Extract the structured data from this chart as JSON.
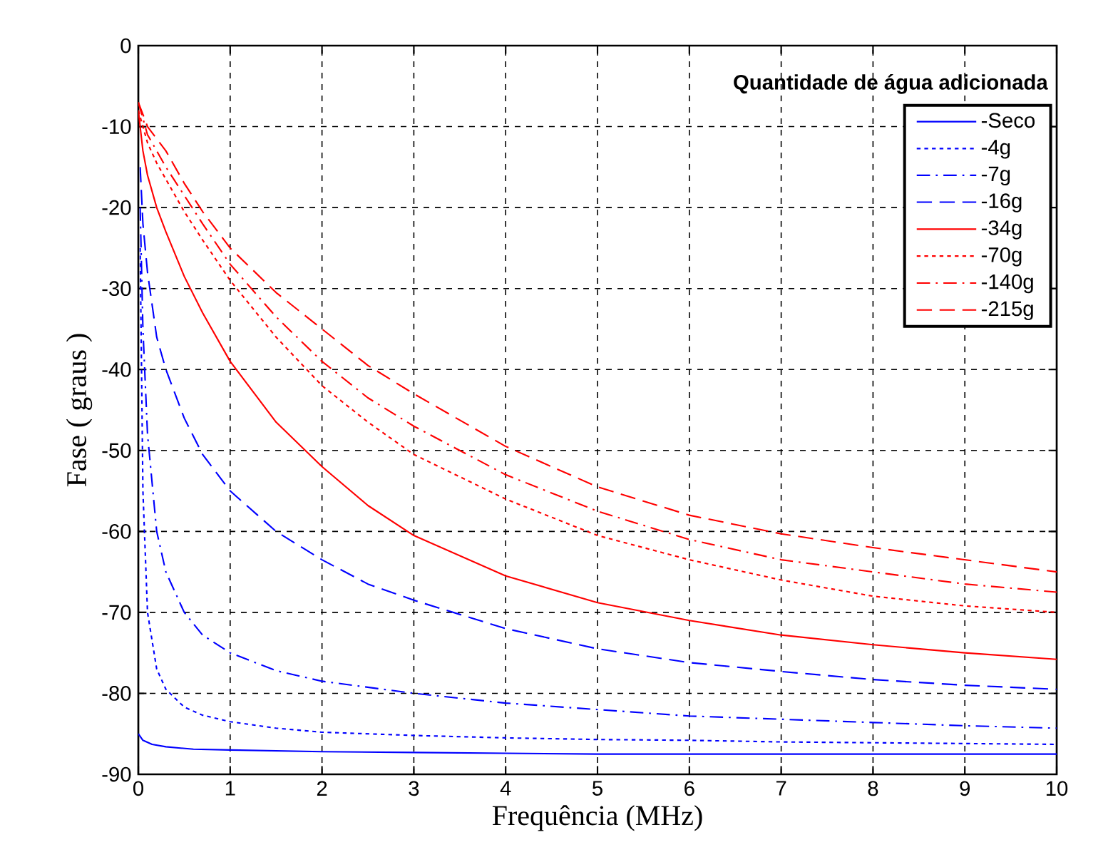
{
  "chart_data": {
    "type": "line",
    "xlabel": "Frequência (MHz)",
    "ylabel": "Fase ( graus )",
    "legend_title": "Quantidade de água adicionada",
    "xlim": [
      0,
      10
    ],
    "ylim": [
      -90,
      0
    ],
    "xticks": [
      0,
      1,
      2,
      3,
      4,
      5,
      6,
      7,
      8,
      9,
      10
    ],
    "yticks": [
      -90,
      -80,
      -70,
      -60,
      -50,
      -40,
      -30,
      -20,
      -10,
      0
    ],
    "grid": true,
    "legend": "top right",
    "series": [
      {
        "name": "-Seco",
        "color": "#0000ff",
        "line_style": "solid",
        "x": [
          0,
          0.05,
          0.15,
          0.3,
          0.6,
          1,
          2,
          3,
          4,
          5,
          6,
          7,
          8,
          9,
          10
        ],
        "values": [
          -85,
          -85.8,
          -86.3,
          -86.6,
          -86.9,
          -87,
          -87.2,
          -87.3,
          -87.4,
          -87.5,
          -87.5,
          -87.5,
          -87.5,
          -87.5,
          -87.5
        ]
      },
      {
        "name": "-4g",
        "color": "#0000ff",
        "line_style": "dotted",
        "x": [
          0.02,
          0.05,
          0.1,
          0.2,
          0.3,
          0.5,
          0.7,
          1,
          1.5,
          2,
          3,
          4,
          5,
          6,
          7,
          8,
          9,
          10
        ],
        "values": [
          -25,
          -55,
          -70,
          -77,
          -79.5,
          -81.7,
          -82.7,
          -83.5,
          -84.3,
          -84.8,
          -85.2,
          -85.5,
          -85.7,
          -85.8,
          -86,
          -86.1,
          -86.2,
          -86.3
        ]
      },
      {
        "name": "-7g",
        "color": "#0000ff",
        "line_style": "dashdot",
        "x": [
          0.02,
          0.05,
          0.1,
          0.2,
          0.3,
          0.5,
          0.7,
          1,
          1.5,
          2,
          3,
          4,
          5,
          6,
          7,
          8,
          9,
          10
        ],
        "values": [
          -20,
          -35,
          -48,
          -60,
          -65,
          -70,
          -72.8,
          -75,
          -77.2,
          -78.5,
          -80,
          -81.2,
          -82,
          -82.8,
          -83.2,
          -83.6,
          -84,
          -84.3
        ]
      },
      {
        "name": "-16g",
        "color": "#0000ff",
        "line_style": "dashed",
        "x": [
          0.02,
          0.05,
          0.1,
          0.2,
          0.3,
          0.5,
          0.7,
          1,
          1.5,
          2,
          2.5,
          3,
          4,
          5,
          6,
          7,
          8,
          9,
          10
        ],
        "values": [
          -15,
          -22,
          -28,
          -36,
          -40,
          -46,
          -50.5,
          -55,
          -60,
          -63.5,
          -66.5,
          -68.5,
          -72,
          -74.5,
          -76.2,
          -77.3,
          -78.3,
          -79,
          -79.5
        ]
      },
      {
        "name": "-34g",
        "color": "#ff0000",
        "line_style": "solid",
        "x": [
          0,
          0.05,
          0.1,
          0.2,
          0.3,
          0.5,
          0.7,
          1,
          1.5,
          2,
          2.5,
          3,
          4,
          5,
          6,
          7,
          8,
          9,
          10
        ],
        "values": [
          -8,
          -13,
          -16,
          -20,
          -23,
          -28.5,
          -33,
          -39,
          -46.5,
          -52,
          -56.8,
          -60.5,
          -65.5,
          -68.8,
          -71,
          -72.8,
          -74,
          -75,
          -75.8
        ]
      },
      {
        "name": "-70g",
        "color": "#ff0000",
        "line_style": "dotted",
        "x": [
          0,
          0.1,
          0.2,
          0.3,
          0.5,
          0.7,
          1,
          1.5,
          2,
          2.5,
          3,
          4,
          5,
          6,
          7,
          8,
          9,
          10
        ],
        "values": [
          -8,
          -12,
          -14.5,
          -16.5,
          -20.5,
          -24,
          -29,
          -36,
          -42,
          -46.5,
          -50.5,
          -56,
          -60.5,
          -63.5,
          -66,
          -68,
          -69.2,
          -70
        ]
      },
      {
        "name": "-140g",
        "color": "#ff0000",
        "line_style": "dashdot",
        "x": [
          0,
          0.1,
          0.2,
          0.3,
          0.5,
          0.7,
          1,
          1.5,
          2,
          2.5,
          3,
          4,
          5,
          6,
          7,
          8,
          9,
          10
        ],
        "values": [
          -7,
          -11,
          -13,
          -15,
          -18.5,
          -22,
          -27,
          -33.5,
          -39,
          -43.5,
          -47,
          -53,
          -57.5,
          -61,
          -63.5,
          -65,
          -66.5,
          -67.5
        ]
      },
      {
        "name": "-215g",
        "color": "#ff0000",
        "line_style": "dashed",
        "x": [
          0,
          0.1,
          0.2,
          0.3,
          0.5,
          0.7,
          1,
          1.5,
          2,
          2.5,
          3,
          4,
          5,
          6,
          7,
          8,
          9,
          10
        ],
        "values": [
          -7,
          -10,
          -11.5,
          -13,
          -17,
          -20.5,
          -25,
          -30.5,
          -35,
          -39.5,
          -43,
          -49.5,
          -54.5,
          -58,
          -60.3,
          -62,
          -63.5,
          -65
        ]
      }
    ]
  }
}
